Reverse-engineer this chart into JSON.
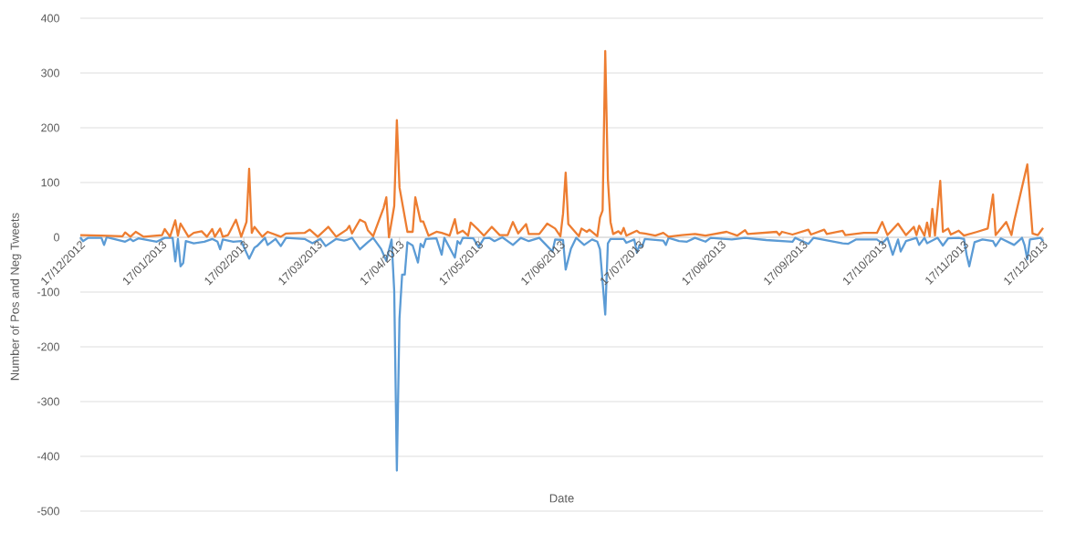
{
  "chart_data": {
    "type": "line",
    "xlabel": "Date",
    "ylabel": "Number of Pos and Neg Tweets",
    "xlim": [
      "2012-12-17",
      "2013-12-17"
    ],
    "ylim": [
      -500,
      400
    ],
    "yticks": [
      -500,
      -400,
      -300,
      -200,
      -100,
      0,
      100,
      200,
      300,
      400
    ],
    "xticks": [
      {
        "value": "2012-12-17",
        "label": "17/12/2012"
      },
      {
        "value": "2013-01-17",
        "label": "17/01/2013"
      },
      {
        "value": "2013-02-17",
        "label": "17/02/2013"
      },
      {
        "value": "2013-03-17",
        "label": "17/03/2013"
      },
      {
        "value": "2013-04-17",
        "label": "17/04/2013"
      },
      {
        "value": "2013-05-17",
        "label": "17/05/2013"
      },
      {
        "value": "2013-06-17",
        "label": "17/06/2013"
      },
      {
        "value": "2013-07-17",
        "label": "17/07/2013"
      },
      {
        "value": "2013-08-17",
        "label": "17/08/2013"
      },
      {
        "value": "2013-09-17",
        "label": "17/09/2013"
      },
      {
        "value": "2013-10-17",
        "label": "17/10/2013"
      },
      {
        "value": "2013-11-17",
        "label": "17/11/2013"
      },
      {
        "value": "2013-12-17",
        "label": "17/12/2013"
      }
    ],
    "grid": "y",
    "series": [
      {
        "color": "#5b9bd5",
        "x": [
          "2012-12-17",
          "2012-12-18",
          "2012-12-20",
          "2012-12-25",
          "2012-12-26",
          "2012-12-27",
          "2013-01-03",
          "2013-01-05",
          "2013-01-06",
          "2013-01-08",
          "2013-01-15",
          "2013-01-18",
          "2013-01-21",
          "2013-01-22",
          "2013-01-23",
          "2013-01-24",
          "2013-01-25",
          "2013-01-26",
          "2013-01-29",
          "2013-02-02",
          "2013-02-05",
          "2013-02-07",
          "2013-02-08",
          "2013-02-09",
          "2013-02-13",
          "2013-02-16",
          "2013-02-19",
          "2013-02-21",
          "2013-02-22",
          "2013-02-25",
          "2013-02-26",
          "2013-03-01",
          "2013-03-03",
          "2013-03-05",
          "2013-03-12",
          "2013-03-15",
          "2013-03-18",
          "2013-03-20",
          "2013-03-24",
          "2013-03-27",
          "2013-03-28",
          "2013-03-30",
          "2013-04-02",
          "2013-04-05",
          "2013-04-07",
          "2013-04-10",
          "2013-04-12",
          "2013-04-14",
          "2013-04-15",
          "2013-04-16",
          "2013-04-17",
          "2013-04-18",
          "2013-04-19",
          "2013-04-20",
          "2013-04-22",
          "2013-04-24",
          "2013-04-25",
          "2013-04-26",
          "2013-04-27",
          "2013-05-01",
          "2013-05-03",
          "2013-05-04",
          "2013-05-08",
          "2013-05-09",
          "2013-05-10",
          "2013-05-11",
          "2013-05-15",
          "2013-05-17",
          "2013-05-19",
          "2013-05-21",
          "2013-05-23",
          "2013-05-26",
          "2013-05-30",
          "2013-06-02",
          "2013-06-05",
          "2013-06-09",
          "2013-06-14",
          "2013-06-15",
          "2013-06-18",
          "2013-06-19",
          "2013-06-21",
          "2013-06-23",
          "2013-06-26",
          "2013-06-29",
          "2013-07-01",
          "2013-07-02",
          "2013-07-04",
          "2013-07-05",
          "2013-07-06",
          "2013-07-11",
          "2013-07-12",
          "2013-07-15",
          "2013-07-16",
          "2013-07-17",
          "2013-07-18",
          "2013-07-19",
          "2013-07-26",
          "2013-07-27",
          "2013-07-28",
          "2013-08-01",
          "2013-08-04",
          "2013-08-07",
          "2013-08-11",
          "2013-08-13",
          "2013-08-21",
          "2013-08-26",
          "2013-09-03",
          "2013-09-13",
          "2013-09-14",
          "2013-09-19",
          "2013-09-21",
          "2013-10-02",
          "2013-10-04",
          "2013-10-07",
          "2013-10-15",
          "2013-10-17",
          "2013-10-19",
          "2013-10-21",
          "2013-10-23",
          "2013-10-24",
          "2013-10-26",
          "2013-10-30",
          "2013-10-31",
          "2013-11-02",
          "2013-11-03",
          "2013-11-07",
          "2013-11-09",
          "2013-11-11",
          "2013-11-15",
          "2013-11-17",
          "2013-11-18",
          "2013-11-19",
          "2013-11-21",
          "2013-11-24",
          "2013-11-28",
          "2013-11-29",
          "2013-12-01",
          "2013-12-06",
          "2013-12-09",
          "2013-12-10",
          "2013-12-11",
          "2013-12-12",
          "2013-12-16",
          "2013-12-17"
        ],
        "values": [
          0,
          -7,
          -1,
          -1,
          -14,
          0,
          -8,
          -3,
          -7,
          -2,
          -8,
          -1,
          -1,
          -44,
          -3,
          -53,
          -47,
          -7,
          -11,
          -8,
          -3,
          -8,
          -22,
          -4,
          -8,
          -7,
          -39,
          -19,
          -16,
          -1,
          -14,
          -3,
          -16,
          -1,
          -3,
          -11,
          -3,
          -16,
          -3,
          -6,
          -5,
          -1,
          -22,
          -9,
          -1,
          -21,
          -43,
          -4,
          -98,
          -426,
          -148,
          -68,
          -68,
          -9,
          -15,
          -46,
          -12,
          -18,
          -3,
          -2,
          -32,
          -1,
          -37,
          -7,
          -12,
          -1,
          -2,
          -18,
          -2,
          -1,
          -7,
          0,
          -14,
          -1,
          -7,
          -1,
          -26,
          -4,
          -5,
          -59,
          -21,
          -1,
          -14,
          -4,
          -8,
          -22,
          -141,
          -11,
          -3,
          -3,
          -10,
          -4,
          -28,
          -14,
          -17,
          -3,
          -6,
          -14,
          -1,
          -7,
          -8,
          -1,
          -8,
          -1,
          -4,
          -1,
          -5,
          -8,
          -1,
          -12,
          -1,
          -11,
          -12,
          -4,
          -4,
          -11,
          -1,
          -32,
          -4,
          -26,
          -7,
          -1,
          -14,
          -1,
          -11,
          -1,
          -15,
          -2,
          -1,
          -3,
          -32,
          -53,
          -9,
          -4,
          -7,
          -16,
          -2,
          -14,
          -1,
          -15,
          -40,
          -4,
          -1,
          -7
        ]
      },
      {
        "color": "#ed7d31",
        "x": [
          "2012-12-17",
          "2012-12-25",
          "2013-01-02",
          "2013-01-03",
          "2013-01-05",
          "2013-01-07",
          "2013-01-10",
          "2013-01-17",
          "2013-01-18",
          "2013-01-20",
          "2013-01-22",
          "2013-01-23",
          "2013-01-24",
          "2013-01-27",
          "2013-01-29",
          "2013-02-01",
          "2013-02-03",
          "2013-02-05",
          "2013-02-06",
          "2013-02-08",
          "2013-02-09",
          "2013-02-11",
          "2013-02-14",
          "2013-02-16",
          "2013-02-18",
          "2013-02-19",
          "2013-02-20",
          "2013-02-21",
          "2013-02-24",
          "2013-02-26",
          "2013-03-03",
          "2013-03-05",
          "2013-03-12",
          "2013-03-14",
          "2013-03-17",
          "2013-03-21",
          "2013-03-24",
          "2013-03-28",
          "2013-03-29",
          "2013-03-30",
          "2013-04-02",
          "2013-04-04",
          "2013-04-05",
          "2013-04-07",
          "2013-04-10",
          "2013-04-11",
          "2013-04-12",
          "2013-04-13",
          "2013-04-15",
          "2013-04-16",
          "2013-04-17",
          "2013-04-20",
          "2013-04-22",
          "2013-04-23",
          "2013-04-25",
          "2013-04-26",
          "2013-04-28",
          "2013-05-01",
          "2013-05-03",
          "2013-05-06",
          "2013-05-08",
          "2013-05-09",
          "2013-05-11",
          "2013-05-13",
          "2013-05-14",
          "2013-05-17",
          "2013-05-19",
          "2013-05-22",
          "2013-05-25",
          "2013-05-28",
          "2013-05-30",
          "2013-06-01",
          "2013-06-04",
          "2013-06-05",
          "2013-06-09",
          "2013-06-12",
          "2013-06-15",
          "2013-06-17",
          "2013-06-18",
          "2013-06-19",
          "2013-06-20",
          "2013-06-24",
          "2013-06-25",
          "2013-06-27",
          "2013-06-28",
          "2013-07-01",
          "2013-07-02",
          "2013-07-03",
          "2013-07-04",
          "2013-07-05",
          "2013-07-06",
          "2013-07-07",
          "2013-07-09",
          "2013-07-10",
          "2013-07-11",
          "2013-07-12",
          "2013-07-16",
          "2013-07-17",
          "2013-07-19",
          "2013-07-23",
          "2013-07-26",
          "2013-07-28",
          "2013-08-02",
          "2013-08-07",
          "2013-08-11",
          "2013-08-19",
          "2013-08-23",
          "2013-08-26",
          "2013-08-27",
          "2013-09-07",
          "2013-09-08",
          "2013-09-09",
          "2013-09-13",
          "2013-09-19",
          "2013-09-20",
          "2013-09-25",
          "2013-09-26",
          "2013-10-02",
          "2013-10-03",
          "2013-10-10",
          "2013-10-15",
          "2013-10-17",
          "2013-10-19",
          "2013-10-23",
          "2013-10-26",
          "2013-10-29",
          "2013-10-30",
          "2013-10-31",
          "2013-11-02",
          "2013-11-03",
          "2013-11-04",
          "2013-11-05",
          "2013-11-06",
          "2013-11-08",
          "2013-11-09",
          "2013-11-11",
          "2013-11-12",
          "2013-11-15",
          "2013-11-17",
          "2013-11-22",
          "2013-11-26",
          "2013-11-28",
          "2013-11-29",
          "2013-12-03",
          "2013-12-05",
          "2013-12-06",
          "2013-12-11",
          "2013-12-13",
          "2013-12-15",
          "2013-12-17"
        ],
        "values": [
          4,
          3,
          2,
          9,
          1,
          10,
          1,
          4,
          15,
          1,
          31,
          3,
          25,
          1,
          8,
          11,
          1,
          15,
          1,
          16,
          1,
          4,
          32,
          1,
          28,
          125,
          8,
          19,
          1,
          10,
          1,
          7,
          8,
          14,
          1,
          19,
          1,
          14,
          21,
          7,
          32,
          27,
          13,
          2,
          41,
          54,
          73,
          0,
          57,
          214,
          91,
          10,
          10,
          73,
          29,
          29,
          3,
          10,
          8,
          3,
          33,
          7,
          12,
          3,
          27,
          13,
          3,
          19,
          4,
          4,
          28,
          7,
          24,
          6,
          6,
          25,
          16,
          2,
          43,
          118,
          24,
          2,
          16,
          10,
          14,
          2,
          36,
          49,
          340,
          106,
          28,
          6,
          11,
          6,
          17,
          3,
          12,
          8,
          7,
          3,
          8,
          1,
          4,
          6,
          3,
          10,
          3,
          13,
          6,
          10,
          4,
          10,
          5,
          14,
          5,
          14,
          6,
          12,
          4,
          8,
          8,
          28,
          4,
          25,
          4,
          19,
          4,
          21,
          3,
          27,
          2,
          52,
          3,
          103,
          10,
          16,
          5,
          12,
          3,
          10,
          16,
          78,
          4,
          28,
          4,
          29,
          133,
          7,
          4,
          17
        ]
      }
    ]
  }
}
